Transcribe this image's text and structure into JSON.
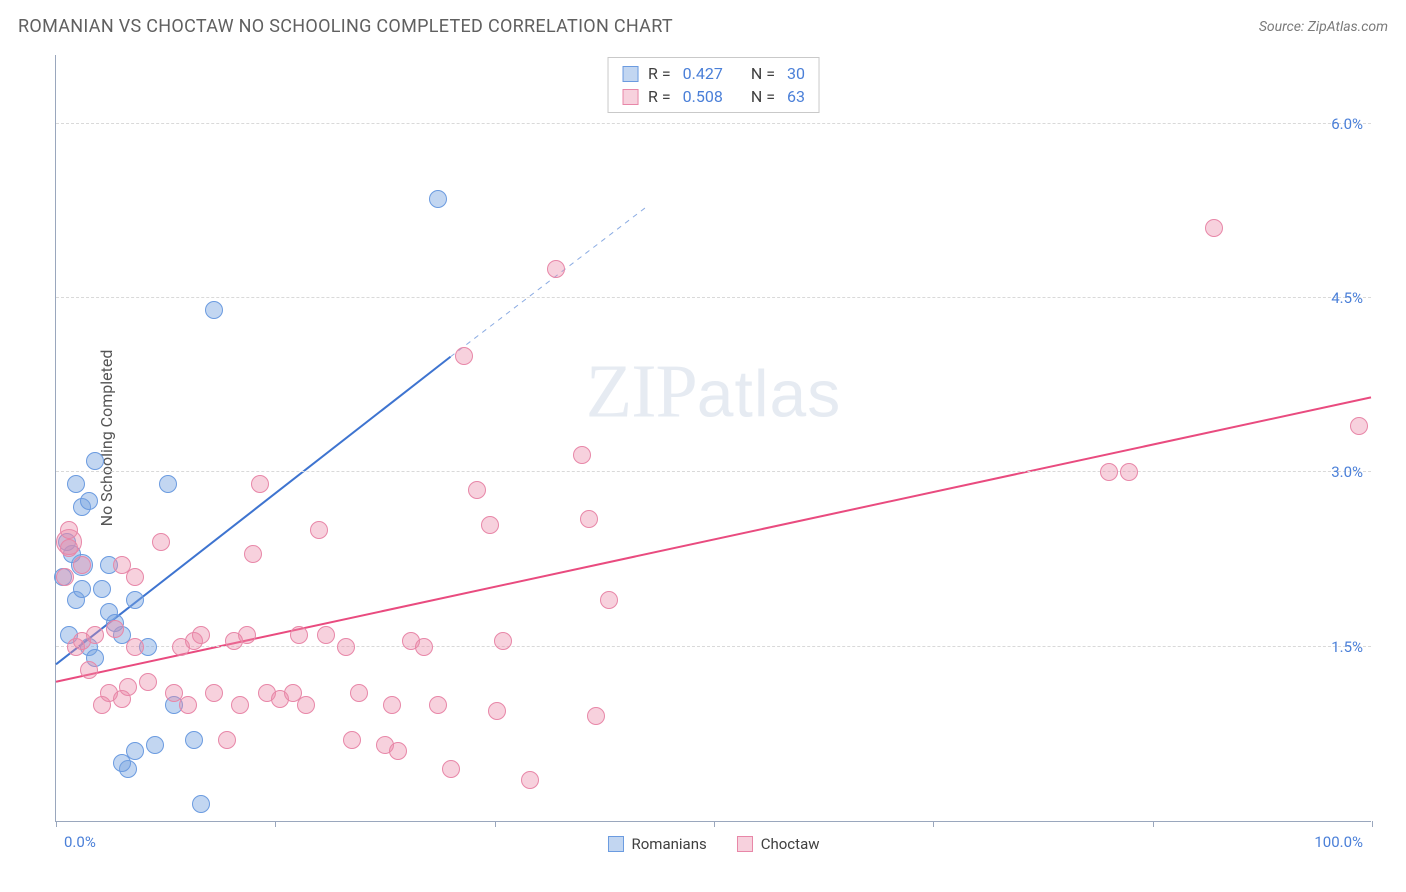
{
  "title": "ROMANIAN VS CHOCTAW NO SCHOOLING COMPLETED CORRELATION CHART",
  "source_label": "Source: ZipAtlas.com",
  "watermark_main": "ZIP",
  "watermark_sub": "atlas",
  "axes": {
    "y_title": "No Schooling Completed",
    "x_min_label": "0.0%",
    "x_max_label": "100.0%",
    "xlim": [
      0,
      100
    ],
    "ylim": [
      0,
      6.6
    ],
    "y_ticks": [
      {
        "v": 1.5,
        "label": "1.5%"
      },
      {
        "v": 3.0,
        "label": "3.0%"
      },
      {
        "v": 4.5,
        "label": "4.5%"
      },
      {
        "v": 6.0,
        "label": "6.0%"
      }
    ],
    "x_ticks": [
      0,
      16.67,
      33.33,
      50,
      66.67,
      83.33,
      100
    ],
    "grid_color": "#d9d9d9",
    "axis_color": "#9aa7bd",
    "tick_label_color": "#4a7fd8"
  },
  "series": [
    {
      "key": "romanians",
      "label": "Romanians",
      "marker_fill": "rgba(120,165,225,0.45)",
      "marker_stroke": "#6b9be0",
      "marker_radius": 9,
      "line_color": "#3e74d0",
      "line_width": 2,
      "dash_after_x": 30,
      "r_label": "R =",
      "r_value": "0.427",
      "n_label": "N =",
      "n_value": "30",
      "regression": {
        "x1": 0,
        "y1": 1.35,
        "x2": 30,
        "y2": 4.0,
        "x2_dash": 45,
        "y2_dash": 5.3
      },
      "points": [
        {
          "x": 1,
          "y": 1.6
        },
        {
          "x": 1.5,
          "y": 1.9
        },
        {
          "x": 2,
          "y": 2.2,
          "r": 11
        },
        {
          "x": 2,
          "y": 2.0
        },
        {
          "x": 1.2,
          "y": 2.3
        },
        {
          "x": 0.8,
          "y": 2.4
        },
        {
          "x": 1.5,
          "y": 2.9
        },
        {
          "x": 3,
          "y": 3.1
        },
        {
          "x": 4,
          "y": 1.8
        },
        {
          "x": 3.5,
          "y": 2.0
        },
        {
          "x": 5,
          "y": 1.6
        },
        {
          "x": 4.5,
          "y": 1.7
        },
        {
          "x": 2.5,
          "y": 1.5
        },
        {
          "x": 3,
          "y": 1.4
        },
        {
          "x": 6,
          "y": 0.6
        },
        {
          "x": 5.5,
          "y": 0.45
        },
        {
          "x": 5,
          "y": 0.5
        },
        {
          "x": 11,
          "y": 0.15
        },
        {
          "x": 12,
          "y": 4.4
        },
        {
          "x": 8.5,
          "y": 2.9
        },
        {
          "x": 2,
          "y": 2.7
        },
        {
          "x": 9,
          "y": 1.0
        },
        {
          "x": 7,
          "y": 1.5
        },
        {
          "x": 6,
          "y": 1.9
        },
        {
          "x": 4,
          "y": 2.2
        },
        {
          "x": 29,
          "y": 5.35
        },
        {
          "x": 7.5,
          "y": 0.65
        },
        {
          "x": 10.5,
          "y": 0.7
        },
        {
          "x": 2.5,
          "y": 2.75
        },
        {
          "x": 0.5,
          "y": 2.1
        }
      ]
    },
    {
      "key": "choctaw",
      "label": "Choctaw",
      "marker_fill": "rgba(235,140,170,0.40)",
      "marker_stroke": "#e887a8",
      "marker_radius": 9,
      "line_color": "#e94b7f",
      "line_width": 2,
      "r_label": "R =",
      "r_value": "0.508",
      "n_label": "N =",
      "n_value": "63",
      "regression": {
        "x1": 0,
        "y1": 1.2,
        "x2": 100,
        "y2": 3.65
      },
      "points": [
        {
          "x": 1,
          "y": 2.4,
          "r": 13
        },
        {
          "x": 1,
          "y": 2.35
        },
        {
          "x": 2,
          "y": 2.2
        },
        {
          "x": 0.7,
          "y": 2.1
        },
        {
          "x": 1,
          "y": 2.5
        },
        {
          "x": 1.5,
          "y": 1.5
        },
        {
          "x": 2,
          "y": 1.55
        },
        {
          "x": 3,
          "y": 1.6
        },
        {
          "x": 3.5,
          "y": 1.0
        },
        {
          "x": 4,
          "y": 1.1
        },
        {
          "x": 5,
          "y": 1.05
        },
        {
          "x": 5.5,
          "y": 1.15
        },
        {
          "x": 6,
          "y": 1.5
        },
        {
          "x": 9,
          "y": 1.1
        },
        {
          "x": 9.5,
          "y": 1.5
        },
        {
          "x": 10,
          "y": 1.0
        },
        {
          "x": 10.5,
          "y": 1.55
        },
        {
          "x": 12,
          "y": 1.1
        },
        {
          "x": 13,
          "y": 0.7
        },
        {
          "x": 14,
          "y": 1.0
        },
        {
          "x": 14.5,
          "y": 1.6
        },
        {
          "x": 15,
          "y": 2.3
        },
        {
          "x": 15.5,
          "y": 2.9
        },
        {
          "x": 16,
          "y": 1.1
        },
        {
          "x": 17,
          "y": 1.05
        },
        {
          "x": 18,
          "y": 1.1
        },
        {
          "x": 18.5,
          "y": 1.6
        },
        {
          "x": 19,
          "y": 1.0
        },
        {
          "x": 20,
          "y": 2.5
        },
        {
          "x": 20.5,
          "y": 1.6
        },
        {
          "x": 22,
          "y": 1.5
        },
        {
          "x": 22.5,
          "y": 0.7
        },
        {
          "x": 23,
          "y": 1.1
        },
        {
          "x": 25,
          "y": 0.65
        },
        {
          "x": 25.5,
          "y": 1.0
        },
        {
          "x": 26,
          "y": 0.6
        },
        {
          "x": 27,
          "y": 1.55
        },
        {
          "x": 28,
          "y": 1.5
        },
        {
          "x": 29,
          "y": 1.0
        },
        {
          "x": 30,
          "y": 0.45
        },
        {
          "x": 32,
          "y": 2.85
        },
        {
          "x": 33,
          "y": 2.55
        },
        {
          "x": 33.5,
          "y": 0.95
        },
        {
          "x": 34,
          "y": 1.55
        },
        {
          "x": 36,
          "y": 0.35
        },
        {
          "x": 31,
          "y": 4.0
        },
        {
          "x": 38,
          "y": 4.75
        },
        {
          "x": 40,
          "y": 3.15
        },
        {
          "x": 40.5,
          "y": 2.6
        },
        {
          "x": 41,
          "y": 0.9
        },
        {
          "x": 42,
          "y": 1.9
        },
        {
          "x": 8,
          "y": 2.4
        },
        {
          "x": 5,
          "y": 2.2
        },
        {
          "x": 80,
          "y": 3.0
        },
        {
          "x": 81.5,
          "y": 3.0
        },
        {
          "x": 88,
          "y": 5.1
        },
        {
          "x": 99,
          "y": 3.4
        },
        {
          "x": 6,
          "y": 2.1
        },
        {
          "x": 7,
          "y": 1.2
        },
        {
          "x": 11,
          "y": 1.6
        },
        {
          "x": 2.5,
          "y": 1.3
        },
        {
          "x": 4.5,
          "y": 1.65
        },
        {
          "x": 13.5,
          "y": 1.55
        }
      ]
    }
  ],
  "legend_bottom": [
    {
      "label": "Romanians",
      "swatch_fill": "rgba(120,165,225,0.45)",
      "swatch_stroke": "#6b9be0"
    },
    {
      "label": "Choctaw",
      "swatch_fill": "rgba(235,140,170,0.40)",
      "swatch_stroke": "#e887a8"
    }
  ]
}
